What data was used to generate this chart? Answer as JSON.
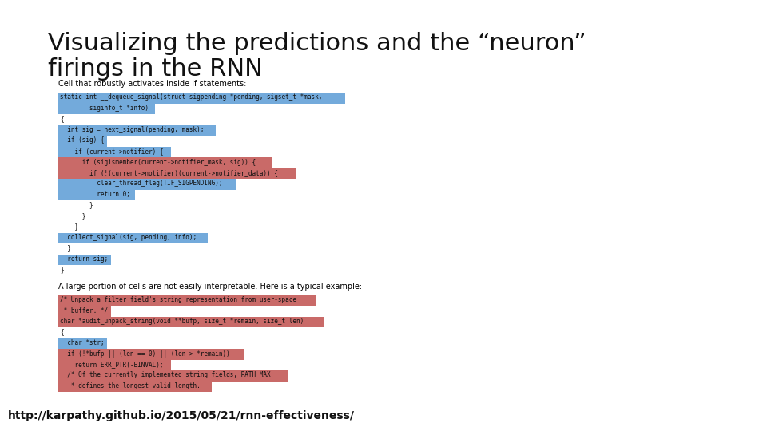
{
  "title_line1": "Visualizing the predictions and the “neuron”",
  "title_line2": "firings in the RNN",
  "footer": "http://karpathy.github.io/2015/05/21/rnn-effectiveness/",
  "title_fontsize": 22,
  "footer_fontsize": 10,
  "background_color": "#ffffff",
  "label1": "Cell that robustly activates inside if statements:",
  "label2": "A large portion of cells are not easily interpretable. Here is a typical example:",
  "code_block1": [
    {
      "text": "static int __dequeue_signal(struct sigpending *pending, sigset_t *mask,",
      "bg": "#5b9bd5"
    },
    {
      "text": "        siginfo_t *info)",
      "bg": "#5b9bd5"
    },
    {
      "text": "{",
      "bg": null
    },
    {
      "text": "  int sig = next_signal(pending, mask);",
      "bg": "#5b9bd5"
    },
    {
      "text": "  if (sig) {",
      "bg": "#5b9bd5"
    },
    {
      "text": "    if (current->notifier) {",
      "bg": "#5b9bd5"
    },
    {
      "text": "      if (sigismember(current->notifier_mask, sig)) {",
      "bg": "#c0504d"
    },
    {
      "text": "        if (!(current->notifier)(current->notifier_data)) {",
      "bg": "#c0504d"
    },
    {
      "text": "          clear_thread_flag(TIF_SIGPENDING);",
      "bg": "#5b9bd5"
    },
    {
      "text": "          return 0;",
      "bg": "#5b9bd5"
    },
    {
      "text": "        }",
      "bg": null
    },
    {
      "text": "      }",
      "bg": null
    },
    {
      "text": "    }",
      "bg": null
    },
    {
      "text": "  collect_signal(sig, pending, info);",
      "bg": "#5b9bd5"
    },
    {
      "text": "  }",
      "bg": null
    },
    {
      "text": "  return sig;",
      "bg": "#5b9bd5"
    },
    {
      "text": "}",
      "bg": null
    }
  ],
  "code_block2": [
    {
      "text": "/* Unpack a filter field's string representation from user-space",
      "bg": "#c0504d"
    },
    {
      "text": " * buffer. */",
      "bg": "#c0504d"
    },
    {
      "text": "char *audit_unpack_string(void **bufp, size_t *remain, size_t len)",
      "bg": "#c0504d"
    },
    {
      "text": "{",
      "bg": null
    },
    {
      "text": "  char *str;",
      "bg": "#5b9bd5"
    },
    {
      "text": "  if (!*bufp || (len == 0) || (len > *remain))",
      "bg": "#c0504d"
    },
    {
      "text": "    return ERR_PTR(-EINVAL);",
      "bg": "#c0504d"
    },
    {
      "text": "  /* Of the currently implemented string fields, PATH_MAX",
      "bg": "#c0504d"
    },
    {
      "text": "   * defines the longest valid length.",
      "bg": "#c0504d"
    }
  ],
  "blue": "#5b9bd5",
  "red": "#c0504d"
}
